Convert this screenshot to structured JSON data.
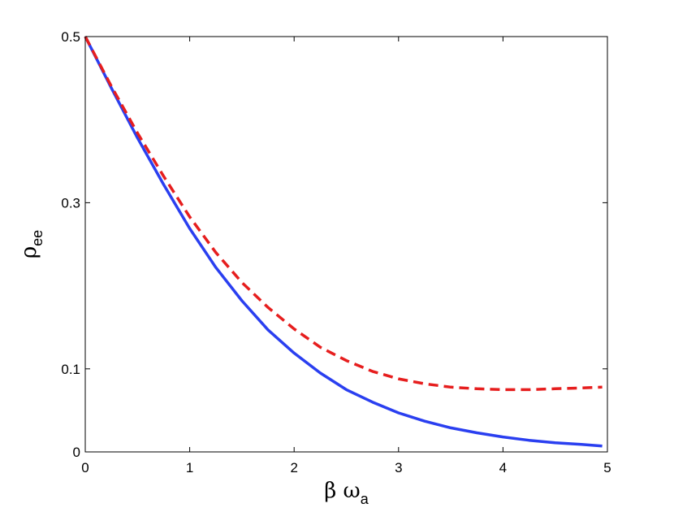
{
  "chart_data": {
    "type": "line",
    "xlabel_main": "β ω",
    "xlabel_sub": "a",
    "ylabel_main": "ρ",
    "ylabel_sub": "ee",
    "xlim": [
      0,
      5
    ],
    "ylim": [
      0,
      0.5
    ],
    "xticks": [
      0,
      1,
      2,
      3,
      4,
      5
    ],
    "xtick_labels": [
      "0",
      "1",
      "2",
      "3",
      "4",
      "5"
    ],
    "yticks": [
      0,
      0.1,
      0.3,
      0.5
    ],
    "ytick_labels": [
      "0",
      "0.1",
      "0.3",
      "0.5"
    ],
    "grid": false,
    "series": [
      {
        "color": "#2a3ff0",
        "style": "solid",
        "x": [
          0,
          0.25,
          0.5,
          0.75,
          1.0,
          1.25,
          1.5,
          1.75,
          2.0,
          2.25,
          2.5,
          2.75,
          3.0,
          3.25,
          3.5,
          3.75,
          4.0,
          4.25,
          4.5,
          4.75,
          4.95
        ],
        "y": [
          0.5,
          0.438,
          0.378,
          0.322,
          0.269,
          0.222,
          0.182,
          0.147,
          0.119,
          0.095,
          0.075,
          0.06,
          0.047,
          0.037,
          0.029,
          0.023,
          0.018,
          0.014,
          0.011,
          0.009,
          0.007
        ]
      },
      {
        "color": "#e61e1e",
        "style": "dashed",
        "x": [
          0,
          0.25,
          0.5,
          0.75,
          1.0,
          1.25,
          1.5,
          1.75,
          2.0,
          2.25,
          2.5,
          2.75,
          3.0,
          3.25,
          3.5,
          3.75,
          4.0,
          4.25,
          4.5,
          4.75,
          4.95
        ],
        "y": [
          0.5,
          0.44,
          0.384,
          0.332,
          0.283,
          0.24,
          0.204,
          0.174,
          0.148,
          0.126,
          0.11,
          0.097,
          0.088,
          0.082,
          0.078,
          0.076,
          0.075,
          0.075,
          0.076,
          0.077,
          0.078
        ]
      }
    ]
  }
}
